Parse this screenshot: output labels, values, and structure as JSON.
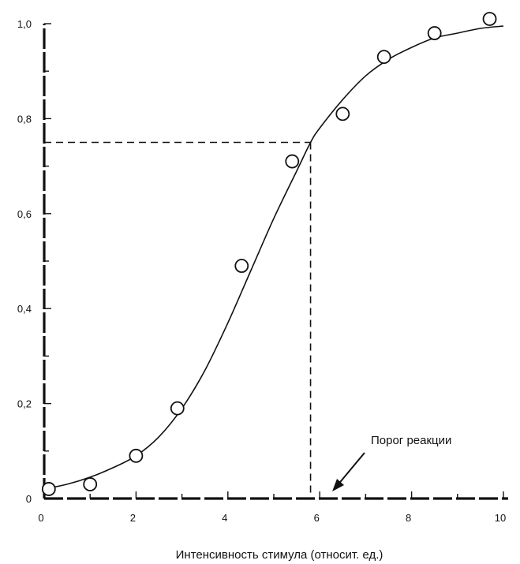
{
  "chart_data": {
    "type": "scatter",
    "title": "",
    "xlabel": "Интенсивность стимула (относит. ед.)",
    "ylabel": "",
    "xlim": [
      0,
      10
    ],
    "ylim": [
      0,
      1.0
    ],
    "x_ticks": [
      0,
      2,
      4,
      6,
      8,
      10
    ],
    "x_tick_labels": [
      "0",
      "2",
      "4",
      "6",
      "8",
      "10"
    ],
    "y_ticks": [
      0,
      0.2,
      0.4,
      0.6,
      0.8,
      1.0
    ],
    "y_tick_labels": [
      "0",
      "0,2",
      "0,4",
      "0,6",
      "0,8",
      "1,0"
    ],
    "points": [
      {
        "x": 0.1,
        "y": 0.02
      },
      {
        "x": 1.0,
        "y": 0.03
      },
      {
        "x": 2.0,
        "y": 0.09
      },
      {
        "x": 2.9,
        "y": 0.19
      },
      {
        "x": 4.3,
        "y": 0.49
      },
      {
        "x": 5.4,
        "y": 0.71
      },
      {
        "x": 6.5,
        "y": 0.81
      },
      {
        "x": 7.4,
        "y": 0.93
      },
      {
        "x": 8.5,
        "y": 0.98
      },
      {
        "x": 9.7,
        "y": 1.01
      }
    ],
    "fit_curve": {
      "x": [
        0,
        0.5,
        1,
        1.5,
        2,
        2.5,
        3,
        3.5,
        4,
        4.5,
        5,
        5.5,
        5.8,
        6,
        6.5,
        7,
        7.5,
        8,
        8.5,
        9,
        9.5,
        10
      ],
      "y": [
        0.02,
        0.03,
        0.045,
        0.065,
        0.09,
        0.13,
        0.19,
        0.27,
        0.37,
        0.48,
        0.59,
        0.69,
        0.75,
        0.78,
        0.84,
        0.89,
        0.925,
        0.95,
        0.97,
        0.98,
        0.99,
        0.995
      ]
    },
    "threshold": {
      "x": 5.8,
      "y": 0.75
    },
    "annotation": "Порог реакции",
    "grid": false,
    "legend": "none"
  }
}
